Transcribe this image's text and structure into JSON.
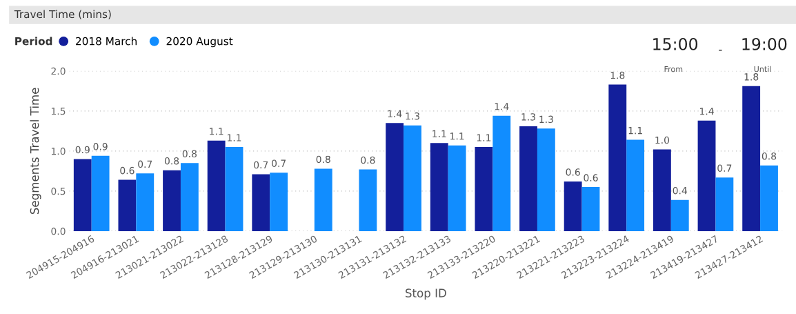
{
  "chart_data": {
    "type": "bar",
    "title": "Travel Time (mins)",
    "xlabel": "Stop ID",
    "ylabel": "Segments Travel Time",
    "legend_title": "Period",
    "legend": "top left",
    "categories": [
      "204915-204916",
      "204916-213021",
      "213021-213022",
      "213022-213128",
      "213128-213129",
      "213129-213130",
      "213130-213131",
      "213131-213132",
      "213132-213133",
      "213133-213220",
      "213220-213221",
      "213221-213223",
      "213223-213224",
      "213224-213419",
      "213419-213427",
      "213427-213412"
    ],
    "series": [
      {
        "name": "2018 March",
        "color": "#131f9b",
        "values": [
          0.9,
          0.64,
          0.76,
          1.13,
          0.71,
          null,
          null,
          1.35,
          1.1,
          1.05,
          1.31,
          0.62,
          1.83,
          1.02,
          1.38,
          1.81
        ],
        "value_labels": [
          "0.9",
          "0.6",
          "0.8",
          "1.1",
          "0.7",
          null,
          null,
          "1.4",
          "1.1",
          "1.1",
          "1.3",
          "0.6",
          "1.8",
          "1.0",
          "1.4",
          "1.8"
        ]
      },
      {
        "name": "2020 August",
        "color": "#118dff",
        "values": [
          0.94,
          0.72,
          0.85,
          1.05,
          0.73,
          0.78,
          0.77,
          1.32,
          1.07,
          1.44,
          1.28,
          0.55,
          1.14,
          0.39,
          0.67,
          0.82
        ],
        "value_labels": [
          "0.9",
          "0.7",
          "0.8",
          "1.1",
          "0.7",
          "0.8",
          "0.8",
          "1.3",
          "1.1",
          "1.4",
          "1.3",
          "0.6",
          "1.1",
          "0.4",
          "0.7",
          "0.8"
        ]
      }
    ],
    "ylim": [
      0,
      2.0
    ],
    "yticks": [
      {
        "value": 0,
        "label": "0.0"
      },
      {
        "value": 0.5,
        "label": "0.5"
      },
      {
        "value": 1.0,
        "label": "1.0"
      },
      {
        "value": 1.5,
        "label": "1.5"
      },
      {
        "value": 2.0,
        "label": "2.0"
      }
    ],
    "grid": "y",
    "annotations": [
      "15:00",
      "-",
      "19:00",
      "From",
      "Until"
    ]
  }
}
